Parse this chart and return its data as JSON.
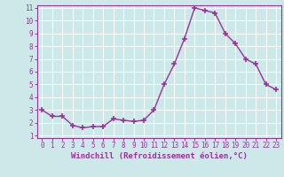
{
  "x": [
    0,
    1,
    2,
    3,
    4,
    5,
    6,
    7,
    8,
    9,
    10,
    11,
    12,
    13,
    14,
    15,
    16,
    17,
    18,
    19,
    20,
    21,
    22,
    23
  ],
  "y": [
    3.0,
    2.5,
    2.5,
    1.8,
    1.6,
    1.7,
    1.7,
    2.3,
    2.2,
    2.1,
    2.2,
    3.0,
    5.0,
    6.6,
    8.6,
    11.0,
    10.8,
    10.6,
    9.0,
    8.2,
    7.0,
    6.6,
    5.0,
    4.6
  ],
  "line_color": "#993399",
  "marker": "+",
  "marker_size": 4,
  "xlabel": "Windchill (Refroidissement éolien,°C)",
  "xlabel_color": "#993399",
  "bg_color": "#cce8e8",
  "grid_color": "#b0d0d0",
  "axis_color": "#993399",
  "tick_color": "#993399",
  "ylim": [
    1,
    11
  ],
  "xlim": [
    -0.5,
    23.5
  ],
  "yticks": [
    1,
    2,
    3,
    4,
    5,
    6,
    7,
    8,
    9,
    10,
    11
  ],
  "xticks": [
    0,
    1,
    2,
    3,
    4,
    5,
    6,
    7,
    8,
    9,
    10,
    11,
    12,
    13,
    14,
    15,
    16,
    17,
    18,
    19,
    20,
    21,
    22,
    23
  ],
  "xlabel_fontsize": 6.5,
  "tick_fontsize": 5.5,
  "linewidth": 1.0
}
